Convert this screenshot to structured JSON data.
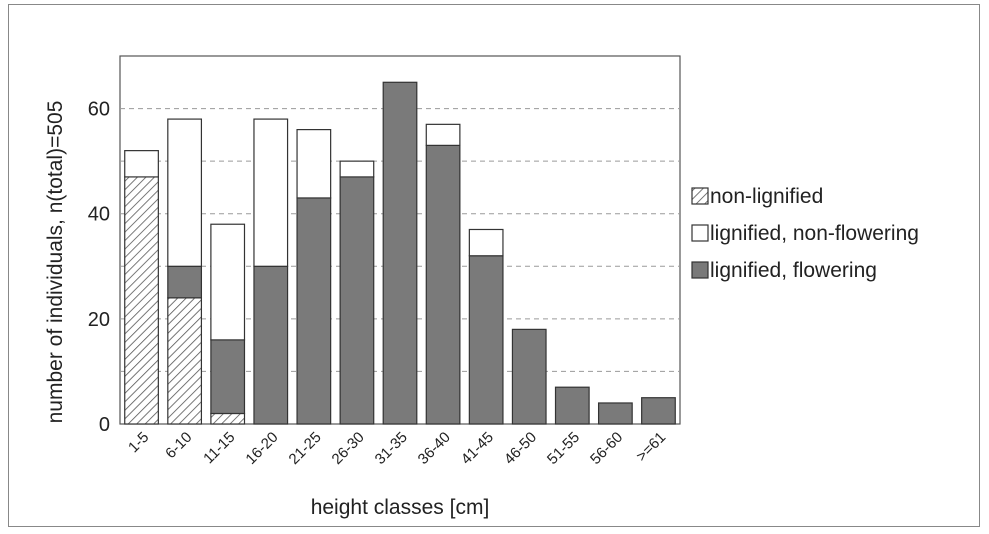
{
  "chart_data": {
    "type": "bar",
    "stacked": true,
    "title": "",
    "xlabel": "height classes [cm]",
    "ylabel": "number of individuals, n(total)=505",
    "categories": [
      "1-5",
      "6-10",
      "11-15",
      "16-20",
      "21-25",
      "26-30",
      "31-35",
      "36-40",
      "41-45",
      "46-50",
      "51-55",
      "56-60",
      ">=61"
    ],
    "series": [
      {
        "name": "non-lignified",
        "pattern": "hatched",
        "color": "#ffffff",
        "values": [
          47,
          24,
          2,
          0,
          0,
          0,
          0,
          0,
          0,
          0,
          0,
          0,
          0
        ]
      },
      {
        "name": "lignified, flowering",
        "pattern": "solid",
        "color": "#7a7a7a",
        "values": [
          0,
          6,
          14,
          30,
          43,
          47,
          65,
          53,
          32,
          18,
          7,
          4,
          5
        ]
      },
      {
        "name": "lignified, non-flowering",
        "pattern": "solid",
        "color": "#ffffff",
        "values": [
          5,
          28,
          22,
          28,
          13,
          3,
          0,
          4,
          5,
          0,
          0,
          0,
          0
        ]
      }
    ],
    "ylim": [
      0,
      70
    ],
    "yticks": [
      0,
      20,
      40,
      60
    ],
    "grid": "horizontal dashed",
    "legend_position": "right",
    "legend_order": [
      "non-lignified",
      "lignified, non-flowering",
      "lignified, flowering"
    ]
  }
}
